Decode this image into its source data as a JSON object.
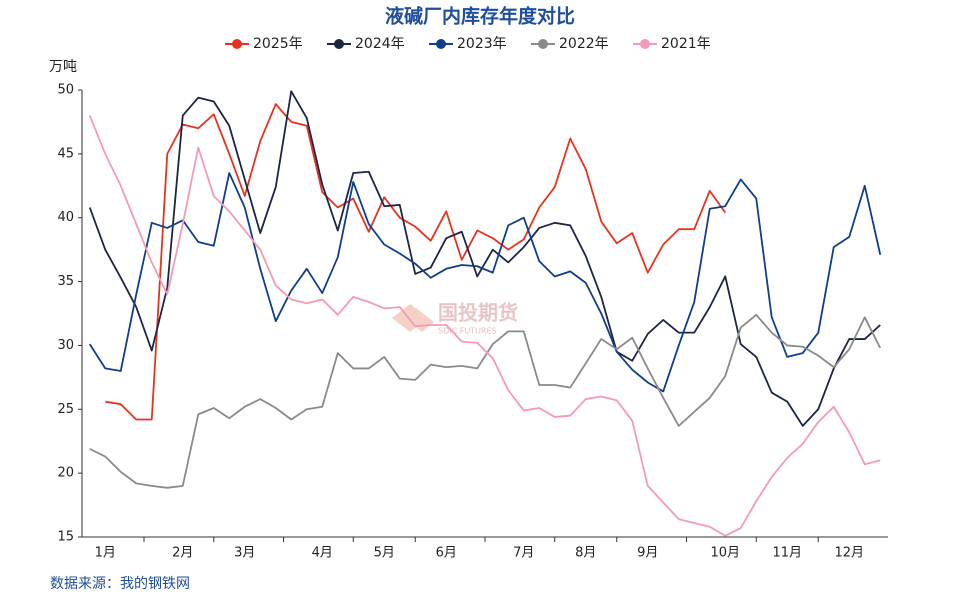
{
  "chart_data": {
    "type": "line",
    "title": "液碱厂内库存年度对比",
    "y_label": "万吨",
    "source": "数据来源：我的钢铁网",
    "watermark": "国投期货",
    "watermark_sub": "SDIC FUTURES",
    "categories": [
      null,
      "1月",
      null,
      null,
      null,
      null,
      "2月",
      null,
      null,
      null,
      "3月",
      null,
      null,
      null,
      null,
      "4月",
      null,
      null,
      null,
      "5月",
      null,
      null,
      null,
      "6月",
      null,
      null,
      null,
      null,
      "7月",
      null,
      null,
      null,
      "8月",
      null,
      null,
      null,
      "9月",
      null,
      null,
      null,
      null,
      "10月",
      null,
      null,
      null,
      "11月",
      null,
      null,
      null,
      "12月",
      null,
      null
    ],
    "ylim": [
      15,
      50
    ],
    "yticks": [
      15,
      20,
      25,
      30,
      35,
      40,
      45,
      50
    ],
    "grid": false,
    "legend": "top",
    "series": [
      {
        "name": "2025年",
        "color": "#e8321e",
        "values": [
          null,
          25.6,
          25.4,
          24.2,
          24.2,
          45,
          47.3,
          47,
          48.1,
          45,
          41.7,
          46,
          48.9,
          47.5,
          47.2,
          42,
          40.8,
          41.5,
          38.9,
          41.6,
          40,
          39.3,
          38.2,
          40.5,
          36.7,
          39,
          38.4,
          37.5,
          38.3,
          40.8,
          42.4,
          46.2,
          43.8,
          39.7,
          38,
          38.8,
          35.7,
          37.9,
          39.1,
          39.1,
          42.1,
          40.4,
          null,
          null,
          null,
          null,
          null,
          null,
          null,
          null,
          null,
          null
        ]
      },
      {
        "name": "2024年",
        "color": "#1c2541",
        "values": [
          40.8,
          37.5,
          35.3,
          33,
          29.6,
          34.5,
          48,
          49.4,
          49.1,
          47.2,
          43,
          38.8,
          42.4,
          49.9,
          47.8,
          42.6,
          39,
          43.5,
          43.6,
          40.9,
          41,
          35.6,
          36.1,
          38.4,
          38.9,
          35.4,
          37.5,
          36.5,
          37.7,
          39.2,
          39.6,
          39.4,
          37,
          33.8,
          29.5,
          28.8,
          30.9,
          32,
          31,
          31,
          33,
          35.4,
          30.1,
          29.1,
          26.3,
          25.6,
          23.7,
          25,
          28.2,
          30.5,
          30.5,
          31.6
        ]
      },
      {
        "name": "2023年",
        "color": "#0f3e8c",
        "values": [
          30.1,
          28.2,
          28,
          34,
          39.6,
          39.2,
          39.8,
          38.1,
          37.8,
          43.5,
          40.8,
          36,
          31.9,
          34.3,
          36,
          34.1,
          36.9,
          42.8,
          39.5,
          37.9,
          37.2,
          36.4,
          35.3,
          36,
          36.3,
          36.2,
          35.7,
          39.4,
          40,
          36.6,
          35.4,
          35.8,
          34.9,
          32.5,
          29.5,
          28.1,
          27.1,
          26.4,
          30,
          33.4,
          40.7,
          40.9,
          43,
          41.5,
          32.2,
          29.1,
          29.4,
          31,
          37.7,
          38.5,
          42.5,
          37.1
        ]
      },
      {
        "name": "2022年",
        "color": "#8a8a8a",
        "values": [
          21.9,
          21.3,
          20.1,
          19.2,
          19,
          18.85,
          19,
          24.6,
          25.1,
          24.3,
          25.2,
          25.8,
          25.1,
          24.2,
          25,
          25.2,
          29.4,
          28.2,
          28.2,
          29.1,
          27.4,
          27.3,
          28.5,
          28.3,
          28.4,
          28.2,
          30.1,
          31.1,
          31.1,
          26.9,
          26.9,
          26.7,
          28.6,
          30.5,
          29.7,
          30.6,
          28.2,
          25.9,
          23.7,
          24.8,
          25.9,
          27.6,
          31.4,
          32.4,
          31,
          30,
          29.9,
          29.2,
          28.3,
          29.7,
          32.2,
          29.8
        ]
      },
      {
        "name": "2021年",
        "color": "#f59ab4",
        "values": [
          48,
          45,
          42.5,
          39.5,
          36.5,
          34,
          39.5,
          45.5,
          41.7,
          40.5,
          39,
          37.5,
          34.7,
          33.6,
          33.3,
          33.6,
          32.4,
          33.8,
          33.4,
          32.9,
          33,
          31.5,
          31.6,
          31.6,
          30.3,
          30.2,
          29,
          26.5,
          24.9,
          25.1,
          24.4,
          24.5,
          25.8,
          26,
          25.7,
          24.1,
          19,
          17.7,
          16.4,
          16.1,
          15.8,
          15.1,
          15.7,
          17.8,
          19.7,
          21.2,
          22.3,
          24,
          25.2,
          23.2,
          20.7,
          21
        ]
      }
    ]
  }
}
